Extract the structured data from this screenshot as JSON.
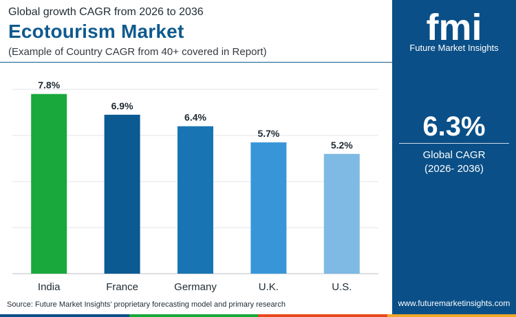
{
  "header": {
    "subtitle": "Global growth CAGR from 2026 to 2036",
    "title": "Ecotourism Market",
    "caption": "(Example of Country CAGR from 40+ covered in Report)"
  },
  "chart_data": {
    "type": "bar",
    "categories": [
      "India",
      "France",
      "Germany",
      "U.K.",
      "U.S."
    ],
    "values": [
      7.8,
      6.9,
      6.4,
      5.7,
      5.2
    ],
    "value_labels": [
      "7.8%",
      "6.9%",
      "6.4%",
      "5.7%",
      "5.2%"
    ],
    "colors": [
      "#19a83c",
      "#0b5a92",
      "#1874b2",
      "#3896d8",
      "#7ebae3"
    ],
    "ylim": [
      0,
      8
    ],
    "grid": true,
    "title": "",
    "xlabel": "",
    "ylabel": ""
  },
  "footer": {
    "source": "Source: Future Market Insights’ proprietary forecasting model and primary research",
    "website": "www.futuremarketinsights.com",
    "strip_colors": [
      "#0a4f87",
      "#19a83c",
      "#e8491d",
      "#f0a72a"
    ]
  },
  "sidebar": {
    "logo_mark": "fmi",
    "logo_text": "Future Market Insights",
    "kpi_value": "6.3%",
    "kpi_label_1": "Global CAGR",
    "kpi_label_2": "(2026- 2036)",
    "background": "#0a4f87"
  }
}
